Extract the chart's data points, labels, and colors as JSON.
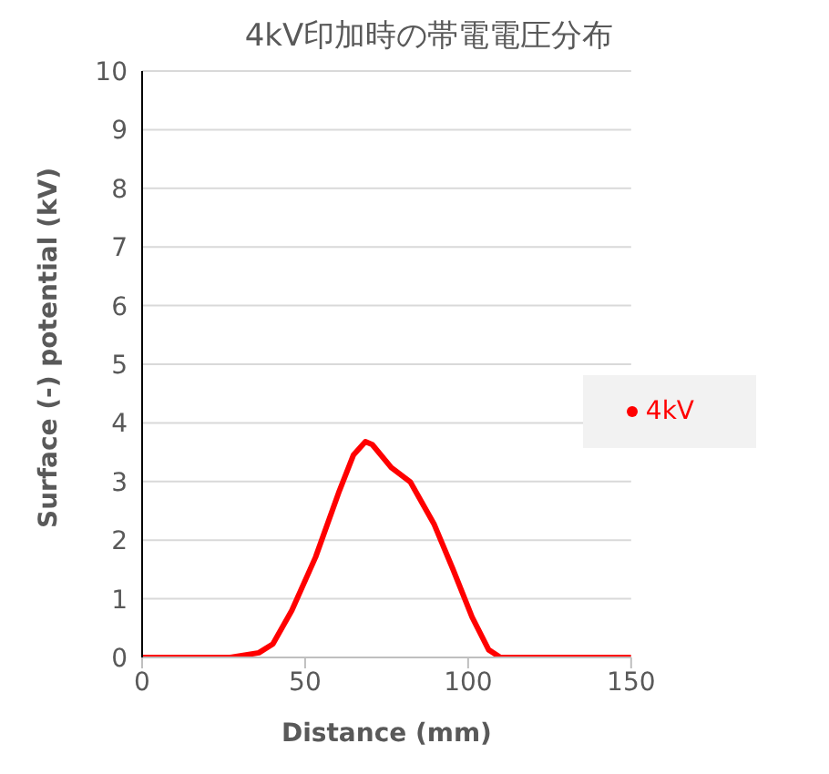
{
  "chart_data": {
    "type": "line",
    "title": "4kV印加時の帯電電圧分布",
    "xlabel": "Distance (mm)",
    "ylabel": "Surface (-) potential (kV)",
    "xlim": [
      0,
      150
    ],
    "xticks": [
      0,
      50,
      100,
      150
    ],
    "ylim": [
      0,
      10
    ],
    "yticks": [
      0,
      1,
      2,
      3,
      4,
      5,
      6,
      7,
      8,
      9,
      10
    ],
    "grid": "y",
    "legend": "right",
    "marker": "none",
    "line_style": "solid",
    "series": [
      {
        "name": "4kV",
        "color": "#ff0000",
        "x": [
          0,
          10,
          20,
          27,
          35.8,
          40.1,
          45.9,
          53.2,
          60.5,
          64.8,
          68.5,
          70.6,
          76.4,
          82.3,
          89.5,
          95.3,
          101.2,
          106.3,
          109.9,
          120,
          130,
          140,
          150
        ],
        "values": [
          0,
          0,
          0,
          0,
          0.08,
          0.23,
          0.8,
          1.71,
          2.84,
          3.45,
          3.68,
          3.63,
          3.24,
          2.99,
          2.28,
          1.51,
          0.69,
          0.13,
          0,
          0,
          0,
          0,
          0
        ]
      }
    ]
  }
}
